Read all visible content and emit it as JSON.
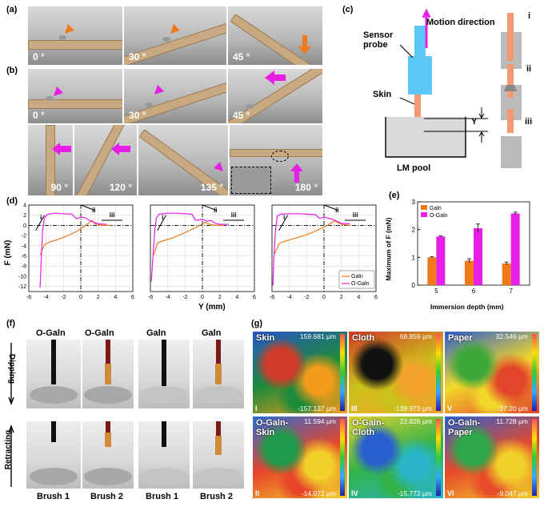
{
  "panel_a": {
    "label": "(a)",
    "angles": [
      "0 °",
      "30 °",
      "45 °"
    ]
  },
  "panel_b": {
    "label": "(b)",
    "angles_row1": [
      "0 °",
      "30 °",
      "45 °"
    ],
    "angles_row2": [
      "90 °",
      "120 °",
      "135 °",
      "180 °"
    ]
  },
  "panel_c": {
    "label": "(c)",
    "sensor_probe": "Sensor probe",
    "motion": "Motion direction",
    "skin": "Skin",
    "y": "Y",
    "pool": "LM pool",
    "steps": [
      "i",
      "ii",
      "iii"
    ]
  },
  "panel_d": {
    "label": "(d)",
    "ylabel": "F (mN)",
    "xlabel": "Y (mm)",
    "legend": [
      "Galn",
      "O-Galn"
    ],
    "markers": [
      "i",
      "ii",
      "iii"
    ]
  },
  "panel_e": {
    "label": "(e)",
    "ylabel": "Maximum of F (mN)",
    "xlabel": "Immersion depth (mm)",
    "legend": [
      "Galn",
      "O-Galn"
    ]
  },
  "panel_f": {
    "label": "(f)",
    "top_labels": [
      "O-Galn",
      "O-Galn",
      "Galn",
      "Galn"
    ],
    "bottom_labels": [
      "Brush 1",
      "Brush 2",
      "Brush 1",
      "Brush 2"
    ],
    "dipping": "Dipping",
    "retracting": "Retracting"
  },
  "panel_g": {
    "label": "(g)",
    "tiles": [
      {
        "title": "Skin",
        "max": "159.681 μm",
        "min": "-157.137 μm",
        "roman": "I",
        "colors": [
          "#d23a2a",
          "#f59b1a",
          "#1d8a3a",
          "#2a55c9"
        ]
      },
      {
        "title": "Cloth",
        "max": "68.859 μm",
        "min": "-139.973 μm",
        "roman": "III",
        "colors": [
          "#111111",
          "#f2a12a",
          "#c9c21a",
          "#d33a2a"
        ]
      },
      {
        "title": "Paper",
        "max": "32.546 μm",
        "min": "-37.20 μm",
        "roman": "V",
        "colors": [
          "#3fa83a",
          "#e2452a",
          "#f2d82a",
          "#2a5fd0"
        ]
      },
      {
        "title": "O-Galn-\nSkin",
        "max": "11.594 μm",
        "min": "-14.072 μm",
        "roman": "II",
        "colors": [
          "#1f9a4a",
          "#f2d22a",
          "#e8442a",
          "#2a6fd6"
        ]
      },
      {
        "title": "O-Galn-\nCloth",
        "max": "22.826 μm",
        "min": "-15.772 μm",
        "roman": "IV",
        "colors": [
          "#2a5fd0",
          "#2ab6c9",
          "#33b24a",
          "#e0d22a"
        ]
      },
      {
        "title": "O-Galn-\nPaper",
        "max": "11.728 μm",
        "min": "-9.047 μm",
        "roman": "VI",
        "colors": [
          "#2fa84a",
          "#f0d02a",
          "#e84a2a",
          "#2a60d0"
        ]
      }
    ]
  },
  "colors": {
    "galn": "#f07a1a",
    "ogaln": "#e61ee6",
    "probe": "#5bc8f5",
    "skin": "#f59a70"
  },
  "chart_data": [
    {
      "type": "line",
      "title": "",
      "xlabel": "Y (mm)",
      "ylabel": "F (mN)",
      "xlim": [
        -6,
        6
      ],
      "ylim": [
        -13,
        4
      ],
      "xticks": [
        -6,
        -4,
        -2,
        0,
        2,
        4,
        6
      ],
      "yticks": [
        -12,
        -10,
        -8,
        -6,
        -4,
        -2,
        0,
        2,
        4
      ],
      "panels": [
        {
          "series": [
            {
              "name": "Galn",
              "x": [
                -4.7,
                -4.2,
                -3.5,
                -2.5,
                -1.5,
                -0.5,
                0.5,
                1.3,
                1.6,
                2.5,
                3.5
              ],
              "y": [
                -5.8,
                -3.8,
                -3.2,
                -2.7,
                -2.0,
                -1.2,
                -0.1,
                1.0,
                0.3,
                0.0,
                0.0
              ]
            },
            {
              "name": "O-Galn",
              "x": [
                -4.7,
                -4.6,
                -4.4,
                -4.2,
                -3.8,
                -3.0,
                -2.0,
                -1.0,
                -0.5,
                0.0,
                0.5,
                1.0,
                1.5,
                2.0,
                3.0
              ],
              "y": [
                -12.2,
                -8.0,
                -1.0,
                1.5,
                2.2,
                2.4,
                2.3,
                2.2,
                1.3,
                1.6,
                1.5,
                1.0,
                0.6,
                0.3,
                0.2
              ]
            }
          ]
        },
        {
          "series": [
            {
              "name": "Galn",
              "x": [
                -5.6,
                -5.2,
                -4.5,
                -3.5,
                -2.5,
                -1.5,
                -0.5,
                0.3,
                0.8,
                1.5,
                2.5
              ],
              "y": [
                -5.8,
                -3.5,
                -3.0,
                -2.5,
                -1.8,
                -1.0,
                -0.2,
                0.6,
                0.2,
                0.0,
                0.0
              ]
            },
            {
              "name": "O-Galn",
              "x": [
                -5.9,
                -5.7,
                -5.5,
                -5.3,
                -5.0,
                -4.0,
                -3.0,
                -2.0,
                -1.2,
                -0.8,
                0.0,
                0.5,
                1.0,
                1.5,
                2.0,
                3.0
              ],
              "y": [
                -11.0,
                -6.0,
                -1.0,
                1.5,
                2.2,
                2.4,
                2.4,
                2.3,
                2.2,
                1.0,
                1.2,
                0.8,
                1.0,
                0.4,
                0.2,
                0.2
              ]
            }
          ]
        },
        {
          "series": [
            {
              "name": "Galn",
              "x": [
                -5.7,
                -5.2,
                -4.5,
                -3.5,
                -2.5,
                -1.5,
                -0.5,
                0.5,
                1.2,
                2.0,
                3.0
              ],
              "y": [
                -5.6,
                -3.6,
                -3.1,
                -2.6,
                -2.1,
                -1.5,
                -0.7,
                0.1,
                0.9,
                0.2,
                0.0
              ]
            },
            {
              "name": "O-Galn",
              "x": [
                -5.9,
                -5.8,
                -5.6,
                -5.4,
                -5.0,
                -4.0,
                -3.0,
                -2.0,
                -1.0,
                -0.5,
                0.0,
                0.5,
                1.0,
                1.5,
                2.0,
                3.0
              ],
              "y": [
                -11.8,
                -7.0,
                -1.0,
                1.8,
                2.2,
                2.3,
                2.3,
                2.2,
                2.1,
                1.4,
                1.6,
                1.4,
                1.2,
                0.8,
                0.4,
                0.3
              ]
            }
          ]
        }
      ]
    },
    {
      "type": "bar",
      "title": "",
      "xlabel": "Immersion depth (mm)",
      "ylabel": "Maximum of F (mN)",
      "categories": [
        "5",
        "6",
        "7"
      ],
      "ylim": [
        0,
        3
      ],
      "yticks": [
        0,
        1,
        2,
        3
      ],
      "series": [
        {
          "name": "Galn",
          "values": [
            1.0,
            0.88,
            0.78
          ],
          "errors": [
            0.02,
            0.07,
            0.05
          ]
        },
        {
          "name": "O-Galn",
          "values": [
            1.75,
            2.05,
            2.58
          ],
          "errors": [
            0.02,
            0.15,
            0.05
          ]
        }
      ]
    }
  ]
}
